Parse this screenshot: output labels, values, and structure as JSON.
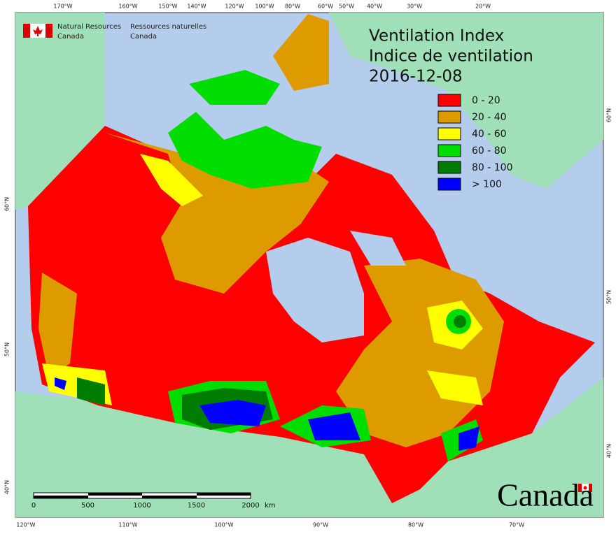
{
  "header": {
    "agency_en": [
      "Natural Resources",
      "Canada"
    ],
    "agency_fr": [
      "Ressources naturelles",
      "Canada"
    ]
  },
  "title": [
    "Ventilation Index",
    "Indice de ventilation",
    "2016-12-08"
  ],
  "legend": [
    {
      "label": "0 - 20",
      "color": "#ff0000"
    },
    {
      "label": "20 - 40",
      "color": "#de9b00"
    },
    {
      "label": "40 - 60",
      "color": "#ffff00"
    },
    {
      "label": "60 - 80",
      "color": "#00dd00"
    },
    {
      "label": "80 - 100",
      "color": "#007d00"
    },
    {
      "label": "> 100",
      "color": "#0000ff"
    }
  ],
  "graticule": {
    "top": [
      "170°W",
      "160°W",
      "150°W",
      "140°W",
      "120°W",
      "100°W",
      "80°W",
      "60°W",
      "50°W",
      "40°W",
      "30°W",
      "20°W"
    ],
    "bottom": [
      "120°W",
      "110°W",
      "100°W",
      "90°W",
      "80°W",
      "70°W"
    ],
    "left": [
      "60°N",
      "50°N",
      "40°N"
    ],
    "right": [
      "60°N",
      "50°N",
      "40°N"
    ]
  },
  "scale_bar": {
    "labels": [
      "0",
      "500",
      "1000",
      "1500",
      "2000"
    ],
    "unit": "km"
  },
  "wordmark": "Canada"
}
